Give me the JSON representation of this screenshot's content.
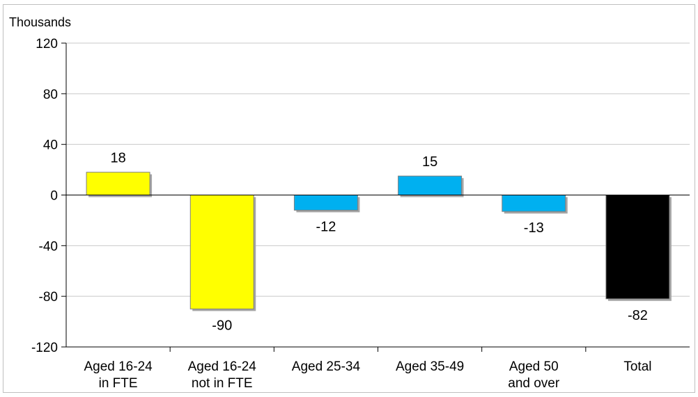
{
  "chart_data": {
    "type": "bar",
    "unit_label": "Thousands",
    "categories": [
      [
        "Aged 16-24",
        "in FTE"
      ],
      [
        "Aged 16-24",
        "not in FTE"
      ],
      [
        "Aged 25-34"
      ],
      [
        "Aged 35-49"
      ],
      [
        "Aged 50",
        "and over"
      ],
      [
        "Total"
      ]
    ],
    "values": [
      18,
      -90,
      -12,
      15,
      -13,
      -82
    ],
    "value_labels": [
      "18",
      "-90",
      "-12",
      "15",
      "-13",
      "-82"
    ],
    "bar_colors": [
      "#ffff00",
      "#ffff00",
      "#00b0f0",
      "#00b0f0",
      "#00b0f0",
      "#000000"
    ],
    "ylim": [
      -120,
      120
    ],
    "yticks": [
      120,
      80,
      40,
      0,
      -40,
      -80,
      -120
    ],
    "grid": true,
    "legend": "none"
  }
}
